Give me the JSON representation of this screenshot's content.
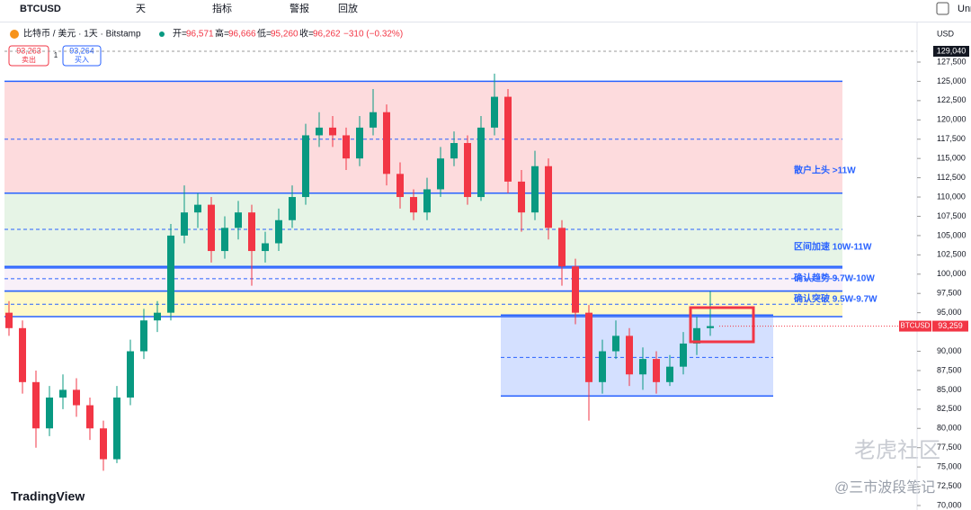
{
  "toolbar": {
    "symbol": "BTCUSD",
    "interval": "天",
    "indicators": "指标",
    "alerts": "警报",
    "replay": "回放",
    "right": "Unr"
  },
  "legend": {
    "title": "比特币 / 美元 · 1天 · Bitstamp",
    "open_label": "开=",
    "open": "96,571",
    "high_label": "高=",
    "high": "96,666",
    "low_label": "低=",
    "low": "95,260",
    "close_label": "收=",
    "close": "96,262",
    "change": "−310 (−0.32%)"
  },
  "trade": {
    "sell_price": "93,263",
    "sell": "卖出",
    "qty": "1",
    "buy_price": "93,264",
    "buy": "买入"
  },
  "currency": "USD",
  "axis_top_label": "129,040",
  "chart_data": {
    "type": "candlestick",
    "symbol_label": "BTCUSD",
    "last_price": {
      "value": 93259,
      "label": "93,259"
    },
    "ylim": [
      70000,
      127500
    ],
    "yticks": [
      {
        "value": 70000,
        "label": "70,000"
      },
      {
        "value": 72500,
        "label": "72,500"
      },
      {
        "value": 75000,
        "label": "75,000"
      },
      {
        "value": 77500,
        "label": "77,500"
      },
      {
        "value": 80000,
        "label": "80,000"
      },
      {
        "value": 82500,
        "label": "82,500"
      },
      {
        "value": 85000,
        "label": "85,000"
      },
      {
        "value": 87500,
        "label": "87,500"
      },
      {
        "value": 90000,
        "label": "90,000"
      },
      {
        "value": 95000,
        "label": "95,000"
      },
      {
        "value": 97500,
        "label": "97,500"
      },
      {
        "value": 100000,
        "label": "100,000"
      },
      {
        "value": 102500,
        "label": "102,500"
      },
      {
        "value": 105000,
        "label": "105,000"
      },
      {
        "value": 107500,
        "label": "107,500"
      },
      {
        "value": 110000,
        "label": "110,000"
      },
      {
        "value": 112500,
        "label": "112,500"
      },
      {
        "value": 115000,
        "label": "115,000"
      },
      {
        "value": 117500,
        "label": "117,500"
      },
      {
        "value": 120000,
        "label": "120,000"
      },
      {
        "value": 122500,
        "label": "122,500"
      },
      {
        "value": 125000,
        "label": "125,000"
      },
      {
        "value": 127500,
        "label": "127,500"
      }
    ],
    "candles": [
      [
        95000,
        96500,
        92000,
        93000
      ],
      [
        93000,
        94000,
        84500,
        86000
      ],
      [
        86000,
        87500,
        77500,
        80000
      ],
      [
        80000,
        85500,
        79000,
        84000
      ],
      [
        84000,
        87000,
        82500,
        85000
      ],
      [
        85000,
        86500,
        81500,
        83000
      ],
      [
        83000,
        84000,
        78500,
        80000
      ],
      [
        80000,
        81000,
        74500,
        76000
      ],
      [
        76000,
        85500,
        75500,
        84000
      ],
      [
        84000,
        91500,
        83000,
        90000
      ],
      [
        90000,
        95500,
        89000,
        94000
      ],
      [
        94000,
        96500,
        92500,
        95000
      ],
      [
        95000,
        106500,
        94000,
        105000
      ],
      [
        105000,
        111500,
        104000,
        108000
      ],
      [
        108000,
        110500,
        106000,
        109000
      ],
      [
        109000,
        110000,
        101500,
        103000
      ],
      [
        103000,
        107500,
        102000,
        106000
      ],
      [
        106000,
        109500,
        104500,
        108000
      ],
      [
        108000,
        109000,
        98500,
        103000
      ],
      [
        103000,
        105500,
        101500,
        104000
      ],
      [
        104000,
        108500,
        103000,
        107000
      ],
      [
        107000,
        111500,
        106000,
        110000
      ],
      [
        110000,
        119500,
        109000,
        118000
      ],
      [
        118000,
        121000,
        116500,
        119000
      ],
      [
        119000,
        120500,
        116500,
        118000
      ],
      [
        118000,
        119000,
        113500,
        115000
      ],
      [
        115000,
        120500,
        114000,
        119000
      ],
      [
        119000,
        124000,
        118000,
        121000
      ],
      [
        121000,
        122000,
        111500,
        113000
      ],
      [
        113000,
        114500,
        108500,
        110000
      ],
      [
        110000,
        111000,
        107000,
        108000
      ],
      [
        108000,
        112500,
        107000,
        111000
      ],
      [
        111000,
        116500,
        110000,
        115000
      ],
      [
        115000,
        118500,
        114000,
        117000
      ],
      [
        117000,
        118000,
        109000,
        110000
      ],
      [
        110000,
        120500,
        109500,
        119000
      ],
      [
        119000,
        126000,
        118000,
        123000
      ],
      [
        123000,
        124000,
        110500,
        112000
      ],
      [
        112000,
        113500,
        105500,
        108000
      ],
      [
        108000,
        116000,
        107000,
        114000
      ],
      [
        114000,
        115000,
        104500,
        106000
      ],
      [
        106000,
        107000,
        98500,
        101000
      ],
      [
        101000,
        102000,
        93500,
        95000
      ],
      [
        95000,
        96000,
        81000,
        86000
      ],
      [
        86000,
        91500,
        84500,
        90000
      ],
      [
        90000,
        94000,
        89000,
        92000
      ],
      [
        92000,
        93000,
        85500,
        87000
      ],
      [
        87000,
        90500,
        85000,
        89000
      ],
      [
        89000,
        90000,
        84500,
        86000
      ],
      [
        86000,
        89500,
        85500,
        88000
      ],
      [
        88000,
        92500,
        87000,
        91000
      ],
      [
        91000,
        94500,
        89500,
        93000
      ],
      [
        93000,
        97800,
        92000,
        93259
      ]
    ],
    "zones": [
      {
        "top": 125000,
        "bottom": 110500,
        "fill": "rgba(242,54,69,0.18)",
        "mid": 117500
      },
      {
        "top": 110500,
        "bottom": 101000,
        "fill": "rgba(76,175,80,0.14)",
        "mid": 105800
      },
      {
        "top": 100800,
        "bottom": 97800,
        "fill": "rgba(156,39,176,0.07)",
        "mid": 99400
      },
      {
        "top": 97800,
        "bottom": 94500,
        "fill": "rgba(255,235,59,0.28)",
        "mid": 96100
      },
      {
        "top": 94700,
        "bottom": 84200,
        "fill": "rgba(41,98,255,0.2)",
        "mid": 89200
      }
    ],
    "annotations": [
      "散户上头 >11W",
      "区间加速 10W-11W",
      "确认趋势 9.7W-10W",
      "确认突破 9.5W-9.7W"
    ]
  },
  "watermark": {
    "brand": "TradingView",
    "community": "老虎社区",
    "author": "@三市波段笔记"
  }
}
